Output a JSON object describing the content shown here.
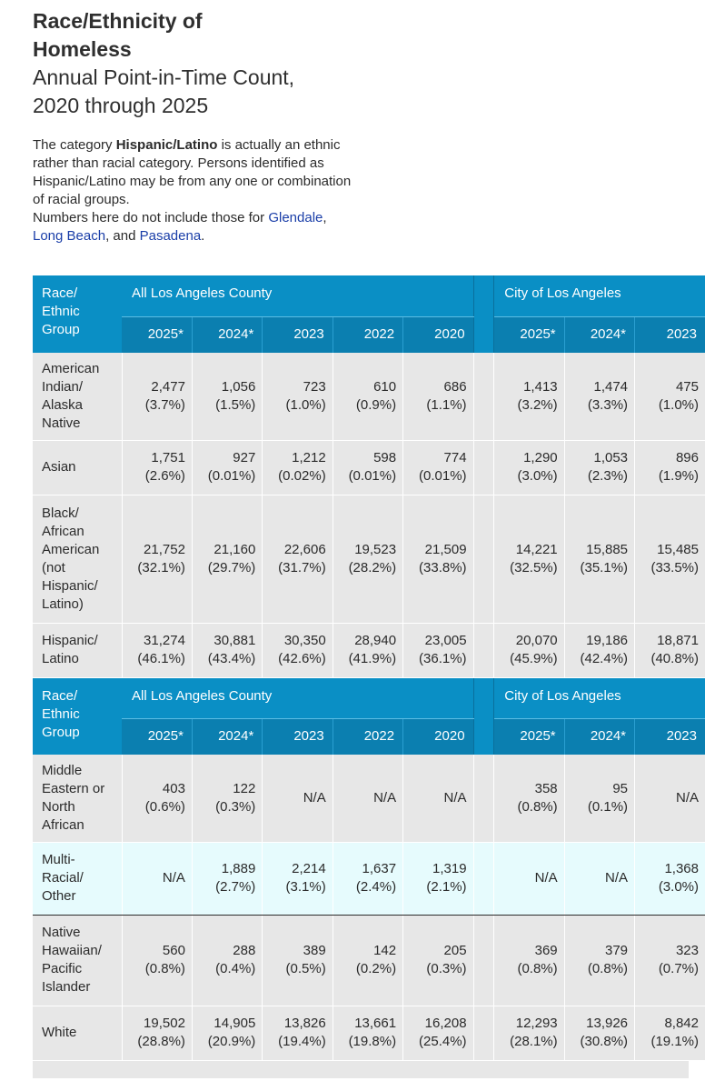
{
  "header": {
    "title_line1": "Race/Ethnicity of",
    "title_line2": "Homeless",
    "subtitle_line1": "Annual Point-in-Time Count,",
    "subtitle_line2": "2020 through 2025"
  },
  "note": {
    "p1_prefix": "The category ",
    "p1_bold": "Hispanic/Latino",
    "p1_suffix": " is actually an ethnic rather than racial category. Persons identified as Hispanic/Latino may be from any one or combination of racial groups.",
    "p2_prefix": "Numbers here do not include those for ",
    "link_glendale": "Glendale",
    "sep1": ", ",
    "link_long_beach": "Long Beach",
    "sep2": ", and ",
    "link_pasadena": "Pasadena",
    "p2_suffix": "."
  },
  "table": {
    "group_header": "Race/ Ethnic Group",
    "region_county": "All Los Angeles County",
    "region_city": "City of Los Angeles",
    "county_years": [
      "2025*",
      "2024*",
      "2023",
      "2022",
      "2020"
    ],
    "city_years": [
      "2025*",
      "2024*",
      "2023"
    ],
    "section1": [
      {
        "group": "American Indian/ Alaska Native",
        "county": [
          [
            "2,477",
            "(3.7%)"
          ],
          [
            "1,056",
            "(1.5%)"
          ],
          [
            "723",
            "(1.0%)"
          ],
          [
            "610",
            "(0.9%)"
          ],
          [
            "686",
            "(1.1%)"
          ]
        ],
        "city": [
          [
            "1,413",
            "(3.2%)"
          ],
          [
            "1,474",
            "(3.3%)"
          ],
          [
            "475",
            "(1.0%)"
          ]
        ]
      },
      {
        "group": "Asian",
        "county": [
          [
            "1,751",
            "(2.6%)"
          ],
          [
            "927",
            "(0.01%)"
          ],
          [
            "1,212",
            "(0.02%)"
          ],
          [
            "598",
            "(0.01%)"
          ],
          [
            "774",
            "(0.01%)"
          ]
        ],
        "city": [
          [
            "1,290",
            "(3.0%)"
          ],
          [
            "1,053",
            "(2.3%)"
          ],
          [
            "896",
            "(1.9%)"
          ]
        ]
      },
      {
        "group": "Black/ African American (not Hispanic/ Latino)",
        "county": [
          [
            "21,752",
            "(32.1%)"
          ],
          [
            "21,160",
            "(29.7%)"
          ],
          [
            "22,606",
            "(31.7%)"
          ],
          [
            "19,523",
            "(28.2%)"
          ],
          [
            "21,509",
            "(33.8%)"
          ]
        ],
        "city": [
          [
            "14,221",
            "(32.5%)"
          ],
          [
            "15,885",
            "(35.1%)"
          ],
          [
            "15,485",
            "(33.5%)"
          ]
        ]
      },
      {
        "group": "Hispanic/ Latino",
        "county": [
          [
            "31,274",
            "(46.1%)"
          ],
          [
            "30,881",
            "(43.4%)"
          ],
          [
            "30,350",
            "(42.6%)"
          ],
          [
            "28,940",
            "(41.9%)"
          ],
          [
            "23,005",
            "(36.1%)"
          ]
        ],
        "city": [
          [
            "20,070",
            "(45.9%)"
          ],
          [
            "19,186",
            "(42.4%)"
          ],
          [
            "18,871",
            "(40.8%)"
          ]
        ]
      }
    ],
    "section2": [
      {
        "group": "Middle Eastern or North African",
        "county": [
          [
            "403",
            "(0.6%)"
          ],
          [
            "122",
            "(0.3%)"
          ],
          [
            "N/A",
            ""
          ],
          [
            "N/A",
            ""
          ],
          [
            "N/A",
            ""
          ]
        ],
        "city": [
          [
            "358",
            "(0.8%)"
          ],
          [
            "95",
            "(0.1%)"
          ],
          [
            "N/A",
            ""
          ]
        ]
      },
      {
        "group": "Multi- Racial/ Other",
        "county": [
          [
            "N/A",
            ""
          ],
          [
            "1,889",
            "(2.7%)"
          ],
          [
            "2,214",
            "(3.1%)"
          ],
          [
            "1,637",
            "(2.4%)"
          ],
          [
            "1,319",
            "(2.1%)"
          ]
        ],
        "city": [
          [
            "N/A",
            ""
          ],
          [
            "N/A",
            ""
          ],
          [
            "1,368",
            "(3.0%)"
          ]
        ]
      },
      {
        "group": "Native Hawaiian/ Pacific Islander",
        "county": [
          [
            "560",
            "(0.8%)"
          ],
          [
            "288",
            "(0.4%)"
          ],
          [
            "389",
            "(0.5%)"
          ],
          [
            "142",
            "(0.2%)"
          ],
          [
            "205",
            "(0.3%)"
          ]
        ],
        "city": [
          [
            "369",
            "(0.8%)"
          ],
          [
            "379",
            "(0.8%)"
          ],
          [
            "323",
            "(0.7%)"
          ]
        ]
      },
      {
        "group": "White",
        "county": [
          [
            "19,502",
            "(28.8%)"
          ],
          [
            "14,905",
            "(20.9%)"
          ],
          [
            "13,826",
            "(19.4%)"
          ],
          [
            "13,661",
            "(19.8%)"
          ],
          [
            "16,208",
            "(25.4%)"
          ]
        ],
        "city": [
          [
            "12,293",
            "(28.1%)"
          ],
          [
            "13,926",
            "(30.8%)"
          ],
          [
            "8,842",
            "(19.1%)"
          ]
        ]
      }
    ]
  }
}
